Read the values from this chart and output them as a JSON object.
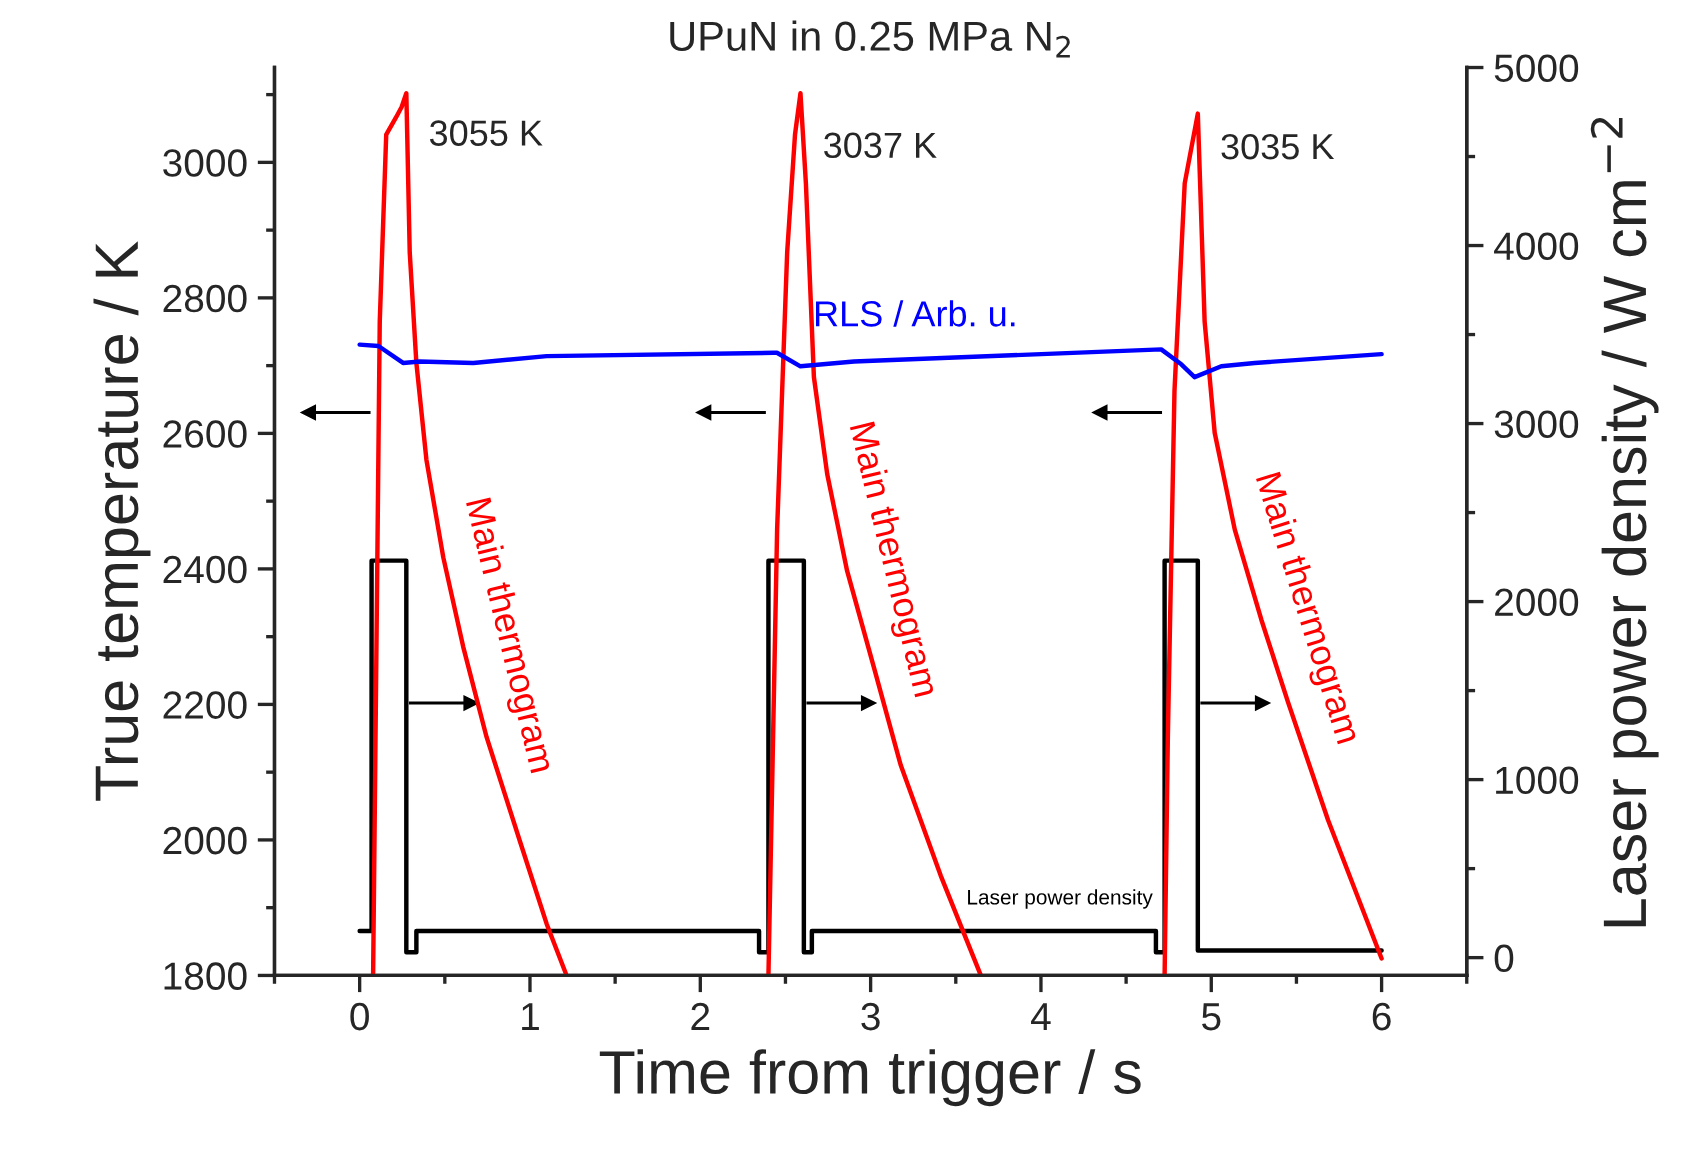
{
  "chart_data": {
    "type": "line",
    "title": "UPuN in 0.25 MPa N$_{2}$",
    "xlabel": "Time from trigger / s",
    "ylabel": "True temperature / K",
    "y2label": "Laser power density / W cm$^{−2}$",
    "xlim": [
      -0.5,
      6.5
    ],
    "xticks": [
      0,
      1,
      2,
      3,
      4,
      5,
      6
    ],
    "ylim": [
      1800,
      3140
    ],
    "yticks": [
      1800,
      2000,
      2200,
      2400,
      2600,
      2800,
      3000
    ],
    "y2lim": [
      -100,
      5000
    ],
    "y2ticks": [
      0,
      1000,
      2000,
      3000,
      4000,
      5000
    ],
    "grid": false,
    "legend": false,
    "marker": "none",
    "line_style": "solid",
    "series": [
      {
        "name": "Main thermogram",
        "color": "#ff0000",
        "x": [
          0.079,
          0.118,
          0.156,
          0.215,
          0.247,
          0.274,
          0.294,
          0.333,
          0.392,
          0.491,
          0.608,
          0.745,
          0.941,
          1.098,
          1.215
        ],
        "values": [
          1800,
          2765,
          3041,
          3067,
          3082,
          3102,
          2867,
          2704,
          2561,
          2417,
          2285,
          2152,
          1998,
          1876,
          1800
        ]
      },
      {
        "name": "Main thermogram",
        "color": "#ff0000",
        "x": [
          2.4,
          2.451,
          2.51,
          2.556,
          2.588,
          2.62,
          2.667,
          2.745,
          2.862,
          3.02,
          3.176,
          3.412,
          3.647
        ],
        "values": [
          1800,
          2458,
          2867,
          3041,
          3102,
          2969,
          2683,
          2540,
          2397,
          2254,
          2111,
          1947,
          1800
        ]
      },
      {
        "name": "Main thermogram",
        "color": "#ff0000",
        "x": [
          4.726,
          4.745,
          4.784,
          4.844,
          4.921,
          4.961,
          5.02,
          5.138,
          5.294,
          5.451,
          5.686,
          6.0
        ],
        "values": [
          1800,
          2152,
          2663,
          2969,
          3072,
          2765,
          2601,
          2458,
          2325,
          2203,
          2029,
          1825
        ]
      },
      {
        "name": "RLS / Arb. u.",
        "color": "#0000ff",
        "x": [
          0.0,
          0.11,
          0.255,
          0.353,
          0.667,
          1.098,
          2.43,
          2.45,
          2.588,
          2.902,
          4.706,
          4.824,
          4.902,
          5.059,
          5.255,
          6.0
        ],
        "values": [
          2731,
          2729,
          2704,
          2706,
          2704,
          2714,
          2719,
          2719,
          2699,
          2706,
          2724,
          2702,
          2683,
          2699,
          2704,
          2717
        ]
      },
      {
        "name": "Laser power density",
        "color": "#000000",
        "type": "step",
        "axis": "y2",
        "x": [
          0,
          0.07,
          0.274,
          0.333,
          2.345,
          2.4,
          2.608,
          2.655,
          4.675,
          4.726,
          4.921,
          6.0
        ],
        "values": [
          150,
          2230,
          30,
          150,
          30,
          2230,
          30,
          150,
          30,
          2230,
          40,
          40
        ]
      }
    ],
    "annotations": [
      {
        "text": "3055 K",
        "x": 0.274,
        "y": 3055
      },
      {
        "text": "3037 K",
        "x": 2.588,
        "y": 3037
      },
      {
        "text": "3035 K",
        "x": 4.921,
        "y": 3035
      }
    ]
  }
}
